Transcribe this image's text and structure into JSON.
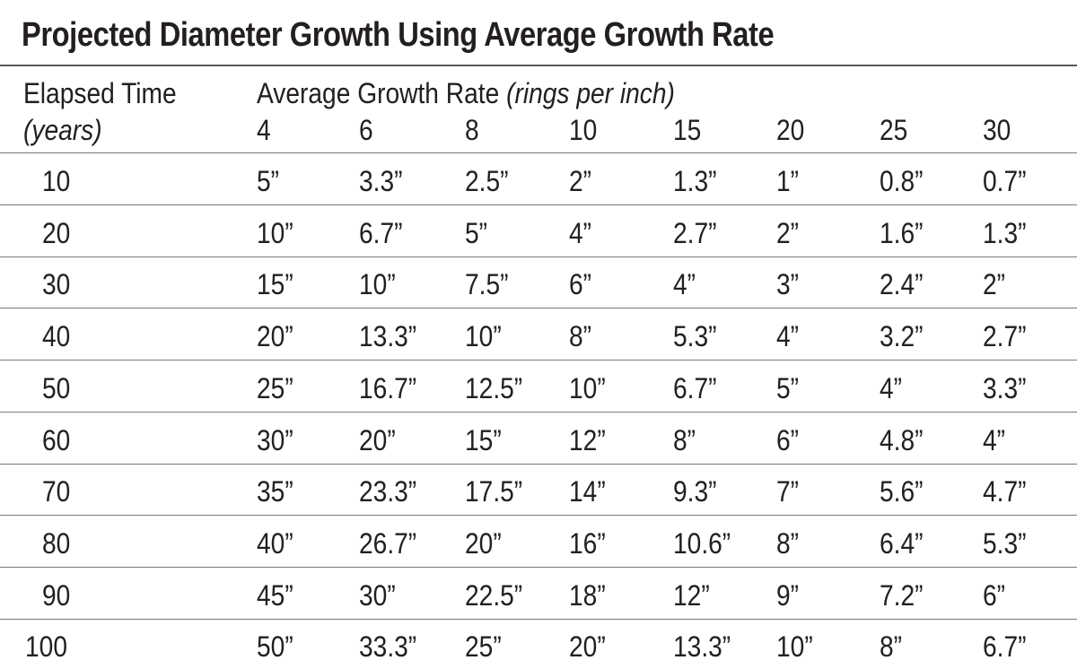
{
  "title": "Projected Diameter Growth Using Average Growth Rate",
  "header": {
    "row_label_line1": "Elapsed Time",
    "row_label_line2": "(years)",
    "group_label": "Average Growth Rate",
    "group_label_unit": "(rings per inch)",
    "columns": [
      "4",
      "6",
      "8",
      "10",
      "15",
      "20",
      "25",
      "30"
    ]
  },
  "rows": [
    {
      "years": "10",
      "values": [
        "5”",
        "3.3”",
        "2.5”",
        "2”",
        "1.3”",
        "1”",
        "0.8”",
        "0.7”"
      ]
    },
    {
      "years": "20",
      "values": [
        "10”",
        "6.7”",
        "5”",
        "4”",
        "2.7”",
        "2”",
        "1.6”",
        "1.3”"
      ]
    },
    {
      "years": "30",
      "values": [
        "15”",
        "10”",
        "7.5”",
        "6”",
        "4”",
        "3”",
        "2.4”",
        "2”"
      ]
    },
    {
      "years": "40",
      "values": [
        "20”",
        "13.3”",
        "10”",
        "8”",
        "5.3”",
        "4”",
        "3.2”",
        "2.7”"
      ]
    },
    {
      "years": "50",
      "values": [
        "25”",
        "16.7”",
        "12.5”",
        "10”",
        "6.7”",
        "5”",
        "4”",
        "3.3”"
      ]
    },
    {
      "years": "60",
      "values": [
        "30”",
        "20”",
        "15”",
        "12”",
        "8”",
        "6”",
        "4.8”",
        "4”"
      ]
    },
    {
      "years": "70",
      "values": [
        "35”",
        "23.3”",
        "17.5”",
        "14”",
        "9.3”",
        "7”",
        "5.6”",
        "4.7”"
      ]
    },
    {
      "years": "80",
      "values": [
        "40”",
        "26.7”",
        "20”",
        "16”",
        "10.6”",
        "8”",
        "6.4”",
        "5.3”"
      ]
    },
    {
      "years": "90",
      "values": [
        "45”",
        "30”",
        "22.5”",
        "18”",
        "12”",
        "9”",
        "7.2”",
        "6”"
      ]
    },
    {
      "years": "100",
      "values": [
        "50”",
        "33.3”",
        "25”",
        "20”",
        "13.3”",
        "10”",
        "8”",
        "6.7”"
      ]
    }
  ]
}
